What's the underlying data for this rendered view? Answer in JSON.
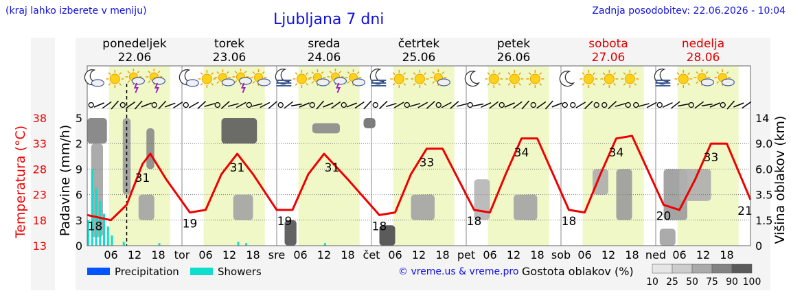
{
  "header": {
    "hint": "(kraj lahko izberete v meniju)",
    "title": "Ljubljana 7 dni",
    "updated": "Zadnja posodobitev: 22.06.2026 - 10:04"
  },
  "footer": {
    "credit": "© vreme.us & vreme.pro",
    "cloud_legend_title": "Gostota oblakov (%)",
    "cloud_legend_ticks": [
      "10",
      "25",
      "50",
      "75",
      "90",
      "100"
    ],
    "series_legend": [
      {
        "label": "Precipitation",
        "color": "#0055ff"
      },
      {
        "label": "Showers",
        "color": "#11ddcc"
      }
    ]
  },
  "days": [
    {
      "name": "ponedeljek",
      "date": "22.06",
      "short": "",
      "weekend": false
    },
    {
      "name": "torek",
      "date": "23.06",
      "short": "tor",
      "weekend": false
    },
    {
      "name": "sreda",
      "date": "24.06",
      "short": "sre",
      "weekend": false
    },
    {
      "name": "četrtek",
      "date": "25.06",
      "short": "čet",
      "weekend": false
    },
    {
      "name": "petek",
      "date": "26.06",
      "short": "pet",
      "weekend": false
    },
    {
      "name": "sobota",
      "date": "27.06",
      "short": "sob",
      "weekend": true
    },
    {
      "name": "nedelja",
      "date": "28.06",
      "short": "ned",
      "weekend": true
    }
  ],
  "hour_ticks": [
    "06",
    "12",
    "18"
  ],
  "day_icons": [
    [
      "moon-cloud-icon",
      "sun-icon",
      "sun-thunder-icon",
      "sun-thunder-icon"
    ],
    [
      "moon-cloud-icon",
      "sun-icon",
      "sun-cloud-icon",
      "sun-thunder-icon",
      "sun-cloud-icon"
    ],
    [
      "moon-fog-icon",
      "sun-icon",
      "sun-cloud-icon",
      "sun-thunder-icon",
      "sun-cloud-icon"
    ],
    [
      "moon-fog-icon",
      "sun-icon",
      "sun-icon",
      "sun-cloud-icon"
    ],
    [
      "moon-icon",
      "sun-icon",
      "sun-icon",
      "sun-icon"
    ],
    [
      "moon-icon",
      "sun-icon",
      "sun-icon",
      "sun-icon"
    ],
    [
      "moon-fog-icon",
      "sun-icon",
      "sun-cloud-icon",
      "sun-cloud-icon"
    ]
  ],
  "colors": {
    "temperature": "#ee0000",
    "daylight": "#f0f8c8",
    "night": "#ffffff",
    "axis_text": "#000000",
    "weekend_text": "#dd0000",
    "title_blue": "#1010e0"
  },
  "chart_data": {
    "type": "line",
    "title": "Ljubljana 7 dni",
    "x_unit": "hours since 22.06 00:00",
    "axes": {
      "temperature": {
        "label": "Temperatura (°C)",
        "ticks": [
          "13",
          "18",
          "23",
          "28",
          "33",
          "38"
        ],
        "range": [
          13,
          38
        ]
      },
      "precipitation": {
        "label": "Padavine (mm/h)",
        "ticks": [
          "0",
          "3",
          "6",
          "9",
          "2",
          "5"
        ]
      },
      "cloud_height": {
        "label": "Višina oblakov (km)",
        "ticks": [
          "0",
          "1.5",
          "3.5",
          "6.0",
          "9.0",
          "14"
        ]
      }
    },
    "series": [
      {
        "name": "Temperatura",
        "points": [
          [
            0,
            19
          ],
          [
            6,
            18
          ],
          [
            10,
            21
          ],
          [
            14,
            29
          ],
          [
            16,
            31
          ],
          [
            20,
            26
          ],
          [
            26,
            19.5
          ],
          [
            30,
            20
          ],
          [
            34,
            27
          ],
          [
            38,
            31
          ],
          [
            42,
            27
          ],
          [
            48,
            20
          ],
          [
            52,
            20
          ],
          [
            56,
            27
          ],
          [
            60,
            31
          ],
          [
            66,
            26
          ],
          [
            74,
            19
          ],
          [
            78,
            19.5
          ],
          [
            82,
            27
          ],
          [
            86,
            32
          ],
          [
            90,
            32
          ],
          [
            98,
            20
          ],
          [
            102,
            19.5
          ],
          [
            106,
            27
          ],
          [
            110,
            34
          ],
          [
            114,
            34
          ],
          [
            122,
            20
          ],
          [
            126,
            19.5
          ],
          [
            130,
            27
          ],
          [
            134,
            34
          ],
          [
            138,
            34.5
          ],
          [
            146,
            21
          ],
          [
            150,
            20
          ],
          [
            154,
            26
          ],
          [
            158,
            33
          ],
          [
            162,
            33
          ],
          [
            168,
            22
          ]
        ]
      }
    ],
    "temperature_labels": [
      {
        "t": 2,
        "value": "18"
      },
      {
        "t": 14,
        "value": "31"
      },
      {
        "t": 26,
        "value": "19"
      },
      {
        "t": 38,
        "value": "31"
      },
      {
        "t": 50,
        "value": "19"
      },
      {
        "t": 62,
        "value": "31"
      },
      {
        "t": 74,
        "value": "18"
      },
      {
        "t": 86,
        "value": "33"
      },
      {
        "t": 98,
        "value": "18"
      },
      {
        "t": 110,
        "value": "34"
      },
      {
        "t": 122,
        "value": "18"
      },
      {
        "t": 134,
        "value": "34"
      },
      {
        "t": 146,
        "value": "20"
      },
      {
        "t": 158,
        "value": "33"
      },
      {
        "t": 168,
        "value": "21"
      }
    ],
    "showers_bars": [
      [
        0,
        0.2
      ],
      [
        1,
        0.6
      ],
      [
        2,
        0.45
      ],
      [
        3,
        0.35
      ],
      [
        4,
        0.25
      ],
      [
        5,
        0.15
      ],
      [
        6,
        0.08
      ],
      [
        9,
        0.03
      ],
      [
        18,
        0.02
      ],
      [
        38,
        0.03
      ],
      [
        40,
        0.02
      ],
      [
        60,
        0.02
      ]
    ],
    "cloud_patches": [
      {
        "t0": 0,
        "t1": 5,
        "h0": 9,
        "h1": 14,
        "density": 60
      },
      {
        "t0": 1,
        "t1": 4,
        "h0": 0.5,
        "h1": 9,
        "density": 40
      },
      {
        "t0": 9,
        "t1": 11,
        "h0": 3.5,
        "h1": 14,
        "density": 45
      },
      {
        "t0": 13,
        "t1": 17,
        "h0": 1.5,
        "h1": 3.5,
        "density": 40
      },
      {
        "t0": 15,
        "t1": 17,
        "h0": 6,
        "h1": 12,
        "density": 55
      },
      {
        "t0": 34,
        "t1": 43,
        "h0": 9,
        "h1": 14,
        "density": 80
      },
      {
        "t0": 37,
        "t1": 42,
        "h0": 1.5,
        "h1": 3.5,
        "density": 40
      },
      {
        "t0": 50,
        "t1": 53,
        "h0": 0,
        "h1": 1.5,
        "density": 85
      },
      {
        "t0": 57,
        "t1": 64,
        "h0": 11,
        "h1": 13,
        "density": 55
      },
      {
        "t0": 70,
        "t1": 73,
        "h0": 12,
        "h1": 14,
        "density": 70
      },
      {
        "t0": 74,
        "t1": 78,
        "h0": 0,
        "h1": 1.2,
        "density": 90
      },
      {
        "t0": 82,
        "t1": 88,
        "h0": 1.5,
        "h1": 3.5,
        "density": 40
      },
      {
        "t0": 98,
        "t1": 102,
        "h0": 1.5,
        "h1": 5,
        "density": 30
      },
      {
        "t0": 108,
        "t1": 114,
        "h0": 1.5,
        "h1": 3.5,
        "density": 40
      },
      {
        "t0": 128,
        "t1": 132,
        "h0": 3.5,
        "h1": 6,
        "density": 35
      },
      {
        "t0": 134,
        "t1": 138,
        "h0": 1.5,
        "h1": 6,
        "density": 45
      },
      {
        "t0": 145,
        "t1": 149,
        "h0": 0,
        "h1": 1,
        "density": 40
      },
      {
        "t0": 146,
        "t1": 152,
        "h0": 1.5,
        "h1": 6,
        "density": 45
      },
      {
        "t0": 150,
        "t1": 158,
        "h0": 3,
        "h1": 6,
        "density": 35
      }
    ],
    "current_time_hours": 10,
    "legend": "bottom-left",
    "grid": true
  }
}
